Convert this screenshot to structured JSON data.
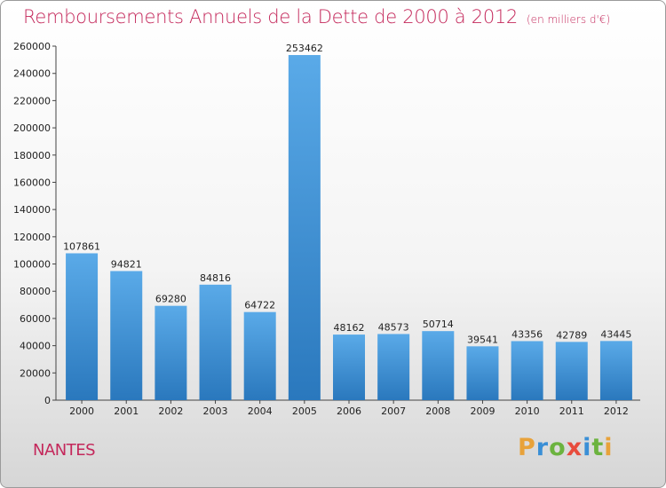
{
  "header": {
    "title": "Remboursements Annuels de la Dette de 2000 à 2012",
    "unit": "(en milliers d'€)"
  },
  "city": "NANTES",
  "logo": {
    "text": "Proxiti",
    "letters": [
      {
        "char": "P",
        "color": "#e8a23a"
      },
      {
        "char": "r",
        "color": "#3a8fd6"
      },
      {
        "char": "o",
        "color": "#6cb33f"
      },
      {
        "char": "x",
        "color": "#e84c3d"
      },
      {
        "char": "i",
        "color": "#3a8fd6"
      },
      {
        "char": "t",
        "color": "#6cb33f"
      },
      {
        "char": "i",
        "color": "#e8a23a"
      }
    ]
  },
  "colors": {
    "title": "#c4285b",
    "bar_top": "#5aaae8",
    "bar_bottom": "#2a78bd"
  },
  "chart_data": {
    "type": "bar",
    "title": "Remboursements Annuels de la Dette de 2000 à 2012",
    "categories": [
      "2000",
      "2001",
      "2002",
      "2003",
      "2004",
      "2005",
      "2006",
      "2007",
      "2008",
      "2009",
      "2010",
      "2011",
      "2012"
    ],
    "values": [
      107861,
      94821,
      69280,
      84816,
      64722,
      253462,
      48162,
      48573,
      50714,
      39541,
      43356,
      42789,
      43445
    ],
    "ylim": [
      0,
      260000
    ],
    "yticks": [
      0,
      20000,
      40000,
      60000,
      80000,
      100000,
      120000,
      140000,
      160000,
      180000,
      200000,
      220000,
      240000,
      260000
    ],
    "grid": false,
    "legend": "none"
  }
}
